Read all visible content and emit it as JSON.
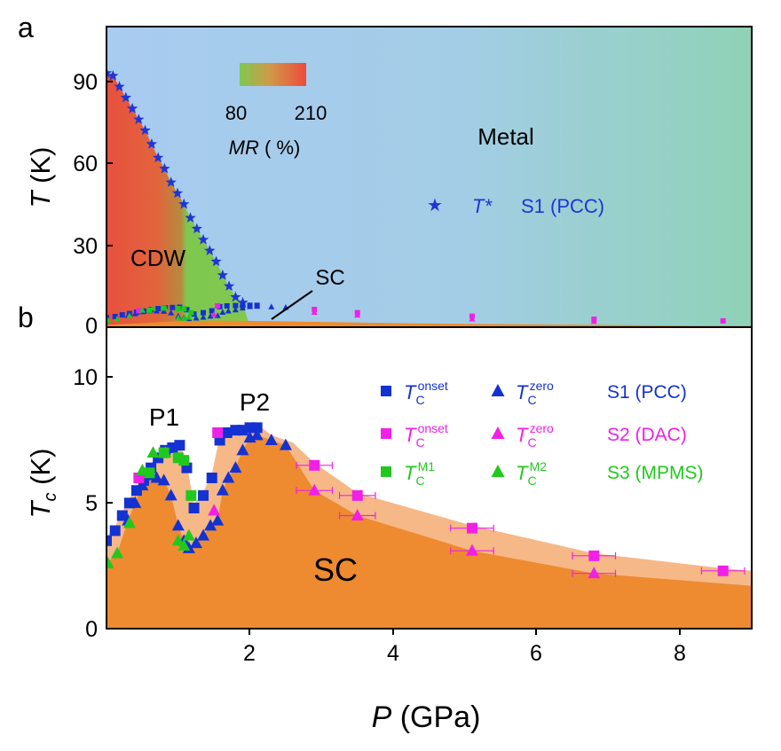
{
  "chart_data": [
    {
      "panel": "a",
      "type": "scatter",
      "xlabel": "",
      "ylabel_var": "T",
      "ylabel_unit": "(K)",
      "xlim": [
        0,
        9
      ],
      "ylim": [
        0,
        110
      ],
      "yticks": [
        "0",
        "30",
        "60",
        "90"
      ],
      "region_labels": {
        "metal": "Metal",
        "cdw": "CDW",
        "sc": "SC"
      },
      "colorbar": {
        "min": "80",
        "max": "210",
        "label_var": "MR",
        "label_unit": "( %)"
      },
      "legend": {
        "symbol": "T*",
        "sample": "S1 (PCC)"
      },
      "colors": {
        "metal_left": "#a6cbef",
        "metal_right": "#8fd0b6",
        "cdw_red": "#e8553f",
        "cdw_green": "#7ec850",
        "sc": "#ef8a2e",
        "tstar": "#1f35d6"
      },
      "series": [
        {
          "symbol": "star",
          "x": [
            0.0,
            0.09,
            0.18,
            0.27,
            0.36,
            0.45,
            0.54,
            0.63,
            0.72,
            0.81,
            0.9,
            0.99,
            1.08,
            1.17,
            1.26,
            1.35,
            1.44,
            1.53,
            1.62,
            1.71,
            1.8,
            1.9
          ],
          "y": [
            93,
            92,
            88,
            84,
            80,
            76,
            72,
            67,
            62,
            58,
            53,
            49,
            45,
            40,
            36,
            32,
            28,
            24,
            19,
            15,
            11,
            9
          ]
        }
      ]
    },
    {
      "panel": "b",
      "type": "scatter",
      "xlabel_var": "P",
      "xlabel_unit": "(GPa)",
      "ylabel_var": "T",
      "ylabel_sub": "c",
      "ylabel_unit": "(K)",
      "xlim": [
        0,
        9
      ],
      "ylim": [
        0,
        12
      ],
      "xticks": [
        "2",
        "4",
        "6",
        "8"
      ],
      "yticks": [
        "0",
        "5",
        "10"
      ],
      "annotations": {
        "p1": "P1",
        "p2": "P2",
        "sc": "SC"
      },
      "legend": [
        {
          "base": "T",
          "sub": "C",
          "sup": "onset",
          "marker": "square",
          "color": "#1432d2"
        },
        {
          "base": "T",
          "sub": "C",
          "sup": "zero",
          "marker": "triangle",
          "color": "#1432d2"
        },
        {
          "sample": "S1 (PCC)",
          "color": "#1432d2"
        },
        {
          "base": "T",
          "sub": "C",
          "sup": "onset",
          "marker": "square",
          "color": "#f020e6"
        },
        {
          "base": "T",
          "sub": "C",
          "sup": "zero",
          "marker": "triangle",
          "color": "#f020e6"
        },
        {
          "sample": "S2 (DAC)",
          "color": "#f020e6"
        },
        {
          "base": "T",
          "sub": "C",
          "sup": "M1",
          "marker": "square",
          "color": "#22c81e"
        },
        {
          "base": "T",
          "sub": "C",
          "sup": "M2",
          "marker": "triangle",
          "color": "#22c81e"
        },
        {
          "sample": "S3 (MPMS)",
          "color": "#22c81e"
        }
      ],
      "series": [
        {
          "name": "S1 (PCC) Tc onset",
          "marker": "square",
          "color": "#1432d2",
          "x": [
            0.0,
            0.12,
            0.22,
            0.32,
            0.42,
            0.52,
            0.62,
            0.72,
            0.82,
            0.92,
            1.02,
            1.12,
            1.22,
            1.35,
            1.47,
            1.58,
            1.68,
            1.8,
            1.9,
            2.0,
            2.1
          ],
          "y": [
            3.5,
            3.9,
            4.5,
            5.0,
            5.5,
            5.9,
            6.4,
            6.8,
            7.1,
            7.2,
            7.3,
            6.4,
            4.8,
            5.3,
            6.0,
            7.5,
            7.8,
            7.9,
            7.9,
            8.0,
            8.0
          ]
        },
        {
          "name": "S1 (PCC) Tc zero",
          "marker": "triangle",
          "color": "#1432d2",
          "x": [
            0.3,
            0.4,
            0.5,
            0.6,
            0.7,
            0.8,
            0.9,
            1.0,
            1.08,
            1.15,
            1.25,
            1.35,
            1.45,
            1.55,
            1.62,
            1.7,
            1.8,
            1.9,
            2.0,
            2.1,
            2.3,
            2.5
          ],
          "y": [
            4.3,
            5.0,
            5.7,
            6.1,
            6.0,
            5.9,
            5.3,
            4.1,
            3.5,
            3.2,
            3.4,
            3.7,
            4.1,
            4.3,
            5.5,
            6.0,
            6.4,
            7.1,
            7.6,
            7.7,
            7.5,
            7.3
          ]
        },
        {
          "name": "S2 (DAC) Tc onset",
          "marker": "square",
          "color": "#f020e6",
          "x": [
            0.45,
            1.55,
            2.9,
            3.5,
            5.1,
            6.8,
            8.6
          ],
          "y": [
            6.0,
            7.8,
            6.5,
            5.3,
            4.0,
            2.9,
            2.3
          ],
          "xerr": [
            0,
            0,
            0.25,
            0.25,
            0.3,
            0.3,
            0.3
          ]
        },
        {
          "name": "S2 (DAC) Tc zero",
          "marker": "triangle",
          "color": "#f020e6",
          "x": [
            1.5,
            2.9,
            3.5,
            5.1,
            6.8
          ],
          "y": [
            4.7,
            5.5,
            4.5,
            3.1,
            2.2
          ],
          "xerr": [
            0,
            0.25,
            0.25,
            0.3,
            0.3
          ]
        },
        {
          "name": "S3 (MPMS) Tc M1",
          "marker": "square",
          "color": "#22c81e",
          "x": [
            0.6,
            0.8,
            1.0,
            1.08,
            1.18
          ],
          "y": [
            6.2,
            7.0,
            6.8,
            6.7,
            5.3
          ]
        },
        {
          "name": "S3 (MPMS) Tc M2",
          "marker": "triangle",
          "color": "#22c81e",
          "x": [
            0.02,
            0.15,
            0.32,
            0.5,
            0.65,
            0.82,
            1.0,
            1.08,
            1.15
          ],
          "y": [
            2.6,
            3.0,
            4.2,
            6.3,
            7.0,
            7.0,
            3.5,
            3.3,
            3.7
          ]
        }
      ]
    }
  ]
}
